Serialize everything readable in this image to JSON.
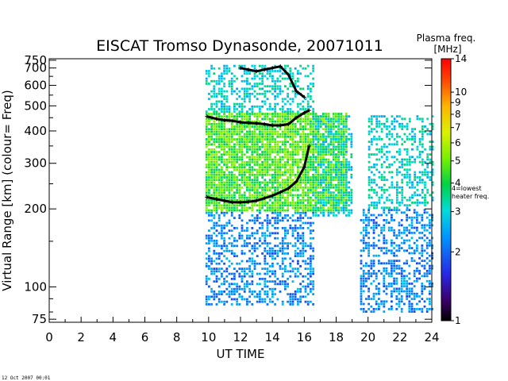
{
  "chart_data": {
    "type": "heatmap",
    "title": "EISCAT Tromso Dynasonde,  20071011",
    "xlabel": "UT TIME",
    "ylabel": "Virtual Range [km]   (colour= Freq)",
    "xlim": [
      0,
      24
    ],
    "ylim": [
      73,
      760
    ],
    "y_scale": "log",
    "x_ticks": [
      "0",
      "2",
      "4",
      "6",
      "8",
      "10",
      "12",
      "14",
      "16",
      "18",
      "20",
      "22",
      "24"
    ],
    "y_ticks": [
      "750",
      "700",
      "600",
      "500",
      "400",
      "300",
      "200",
      "100",
      "75"
    ],
    "y_tick_values": [
      750,
      700,
      600,
      500,
      400,
      300,
      200,
      100,
      75
    ],
    "colorbar": {
      "title_line1": "Plasma freq.",
      "title_line2": "[MHz]",
      "ticks": [
        "14",
        "10",
        "9",
        "8",
        "7",
        "6",
        "5",
        "4",
        "3",
        "2",
        "1"
      ],
      "tick_values": [
        14,
        10,
        9,
        8,
        7,
        6,
        5,
        4,
        3,
        2,
        1
      ],
      "range": [
        1,
        14
      ],
      "scale": "log",
      "annotation_line1": "4=lowest",
      "annotation_line2": "heater freq."
    },
    "regions": [
      {
        "x": [
          9.8,
          18.6
        ],
        "y": [
          195,
          470
        ],
        "freq": 4.5
      },
      {
        "x": [
          9.8,
          16.5
        ],
        "y": [
          85,
          195
        ],
        "freq": 2.2
      },
      {
        "x": [
          9.8,
          16.5
        ],
        "y": [
          470,
          720
        ],
        "freq": 3.0
      },
      {
        "x": [
          16.5,
          19.0
        ],
        "y": [
          190,
          460
        ],
        "freq": 3.0
      },
      {
        "x": [
          20.0,
          24.0
        ],
        "y": [
          200,
          460
        ],
        "freq": 3.0
      },
      {
        "x": [
          19.5,
          24.0
        ],
        "y": [
          80,
          200
        ],
        "freq": 2.2
      }
    ],
    "traces": [
      {
        "x": [
          9.9,
          10.5,
          11.0,
          11.5,
          12.0,
          12.5,
          13.0,
          13.5,
          14.0,
          14.5,
          15.0,
          15.5,
          16.0,
          16.3
        ],
        "y": [
          455,
          445,
          440,
          438,
          432,
          430,
          428,
          425,
          420,
          420,
          425,
          450,
          470,
          480
        ]
      },
      {
        "x": [
          9.9,
          10.5,
          11.0,
          11.5,
          12.0,
          12.5,
          13.0,
          13.5,
          14.0,
          14.5,
          15.0,
          15.5,
          16.0,
          16.3
        ],
        "y": [
          222,
          218,
          215,
          212,
          212,
          213,
          215,
          220,
          225,
          232,
          240,
          255,
          290,
          350
        ]
      },
      {
        "x": [
          12.0,
          12.5,
          13.0,
          13.5,
          14.0,
          14.5,
          15.0,
          15.5,
          16.0
        ],
        "y": [
          700,
          690,
          680,
          690,
          700,
          710,
          660,
          570,
          540
        ]
      }
    ]
  },
  "footer": {
    "timestamp": "12 Oct 2007 00:01"
  }
}
